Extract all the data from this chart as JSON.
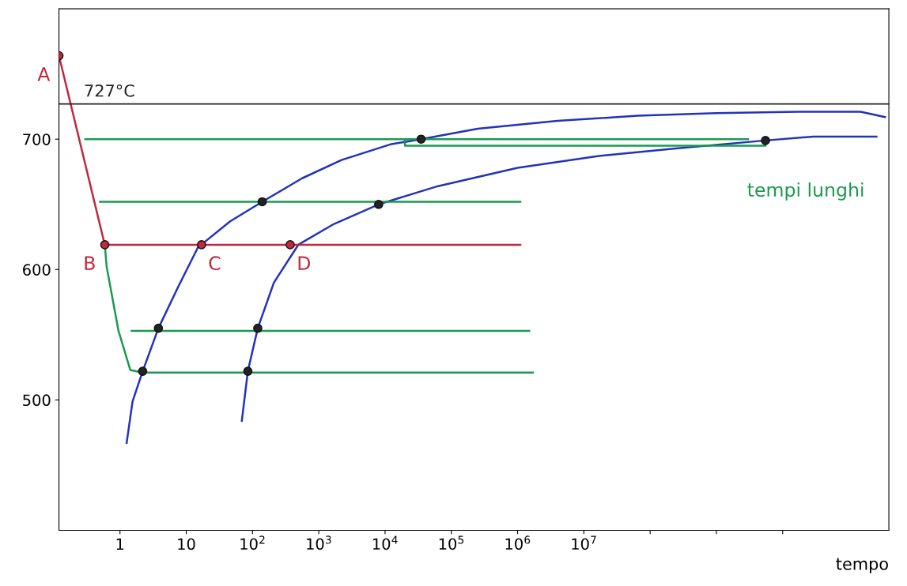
{
  "chart_data": {
    "type": "line",
    "xlabel": "tempo",
    "log": "x",
    "xlim": [
      0.12,
      400000000000.0
    ],
    "ylim": [
      400,
      800
    ],
    "xticks": [
      {
        "value": 1,
        "label": "1"
      },
      {
        "value": 10,
        "label": "10"
      },
      {
        "value": 100,
        "label": "10$^{2}$"
      },
      {
        "value": 1000,
        "label": "10$^{3}$"
      },
      {
        "value": 10000,
        "label": "10$^{4}$"
      },
      {
        "value": 100000,
        "label": "10$^{5}$"
      },
      {
        "value": 1000000,
        "label": "10$^{6}$"
      },
      {
        "value": 10000000,
        "label": "10$^{7}$"
      },
      {
        "value": 100000000,
        "label": null
      },
      {
        "value": 1000000000,
        "label": null
      },
      {
        "value": 10000000000,
        "label": null
      }
    ],
    "yticks": [
      500,
      600,
      700
    ],
    "grid": false,
    "ref_lines": [
      {
        "axis": "y",
        "value": 727,
        "label": "727°C",
        "color": "#222222"
      }
    ],
    "series": [
      {
        "color": "#2233bb",
        "x": [
          1.26,
          1.55,
          2.2,
          3.8,
          7.6,
          15,
          46,
          140,
          560,
          2200,
          12000,
          35000,
          250000,
          4000000,
          65000000,
          1000000000,
          17000000000,
          150000000000,
          350000000000
        ],
        "values": [
          467,
          499,
          522,
          555,
          587,
          617,
          637,
          652,
          670,
          684,
          696,
          700,
          708,
          714,
          718,
          720,
          721,
          721,
          717
        ]
      },
      {
        "color": "#2233bb",
        "x": [
          69,
          85,
          120,
          210,
          490,
          1700,
          8000,
          63000,
          1000000,
          16000000,
          260000000,
          5500000000,
          29000000000,
          260000000000
        ],
        "values": [
          484,
          522,
          555,
          590,
          619,
          635,
          650,
          664,
          678,
          687,
          693,
          699,
          702,
          702
        ]
      },
      {
        "color": "#c0283c",
        "x": [
          0.12,
          0.59,
          1100000
        ],
        "values": [
          764,
          619,
          619
        ]
      },
      {
        "color": "#1a9a50",
        "x": [
          0.59,
          0.63,
          0.95,
          1.43,
          2.2,
          1700000
        ],
        "values": [
          619,
          602,
          553,
          523,
          521,
          521
        ]
      },
      {
        "color": "#1a9a50",
        "x": [
          1.5,
          1500000
        ],
        "values": [
          553,
          553
        ]
      },
      {
        "color": "#1a9a50",
        "x": [
          0.5,
          1100000
        ],
        "values": [
          652,
          652
        ]
      },
      {
        "color": "#1a9a50",
        "x": [
          0.3,
          3000000000
        ],
        "values": [
          700,
          700
        ]
      },
      {
        "color": "#1a9a50",
        "x": [
          20000,
          20000,
          5500000000,
          5500000000
        ],
        "values": [
          700,
          695,
          695,
          699
        ]
      },
      {
        "type": "scatter",
        "color": "#c0283c",
        "marker": "circle",
        "x": [
          0.12,
          0.59,
          17,
          370
        ],
        "values": [
          764,
          619,
          619,
          619
        ]
      },
      {
        "type": "scatter",
        "color": "#222222",
        "marker": "circle",
        "x": [
          3.8,
          2.2,
          140,
          35000,
          120,
          85,
          8000,
          5500000000
        ],
        "values": [
          555,
          522,
          652,
          700,
          555,
          522,
          650,
          699
        ]
      }
    ],
    "annotations": [
      {
        "text": "A",
        "x": 0.12,
        "y": 764
      },
      {
        "text": "B",
        "x": 0.59,
        "y": 619
      },
      {
        "text": "C",
        "x": 17,
        "y": 619
      },
      {
        "text": "D",
        "x": 370,
        "y": 619
      },
      "tempi lunghi"
    ]
  }
}
